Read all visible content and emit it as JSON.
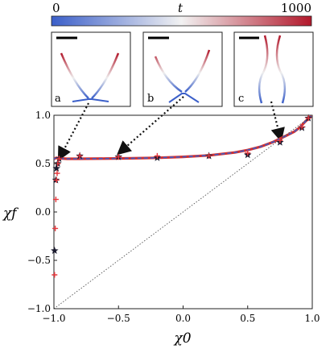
{
  "colorbar": {
    "min_label": "0",
    "mid_label": "t",
    "max_label": "1000",
    "color_low": "#3b5fc9",
    "color_mid": "#f2f2f2",
    "color_high": "#b2182b"
  },
  "insets": [
    {
      "label": "a",
      "x0": -0.97
    },
    {
      "label": "b",
      "x0": -0.5
    },
    {
      "label": "c",
      "x0": 0.77
    }
  ],
  "chart_data": {
    "type": "scatter",
    "xlabel": "χ0",
    "ylabel": "χf",
    "xlim": [
      -1.0,
      1.0
    ],
    "ylim": [
      -1.0,
      1.0
    ],
    "x_ticks": [
      "−1.0",
      "−0.5",
      "0.0",
      "0.5",
      "1.0"
    ],
    "y_ticks": [
      "−1.0",
      "−0.5",
      "0.0",
      "0.5",
      "1.0"
    ],
    "grid": false,
    "series": [
      {
        "name": "",
        "kind": "line",
        "color": "#d32f2f",
        "x": [
          -1.0,
          -0.98,
          -0.96,
          -0.9,
          -0.8,
          -0.6,
          -0.4,
          -0.2,
          0.0,
          0.2,
          0.4,
          0.5,
          0.6,
          0.7,
          0.8,
          0.86,
          0.9,
          0.95,
          1.0
        ],
        "y": [
          0.55,
          0.56,
          0.555,
          0.55,
          0.55,
          0.552,
          0.555,
          0.56,
          0.57,
          0.585,
          0.615,
          0.64,
          0.675,
          0.725,
          0.79,
          0.83,
          0.87,
          0.94,
          1.0
        ]
      },
      {
        "name": "",
        "kind": "line-dashed",
        "color": "#3b5fc9",
        "x": [
          -1.0,
          -0.98,
          -0.96,
          -0.9,
          -0.8,
          -0.6,
          -0.4,
          -0.2,
          0.0,
          0.2,
          0.4,
          0.5,
          0.6,
          0.7,
          0.8,
          0.86,
          0.9,
          0.95,
          1.0
        ],
        "y": [
          0.55,
          0.56,
          0.555,
          0.55,
          0.55,
          0.552,
          0.555,
          0.56,
          0.57,
          0.585,
          0.615,
          0.64,
          0.675,
          0.725,
          0.79,
          0.83,
          0.87,
          0.94,
          1.0
        ]
      },
      {
        "name": "",
        "kind": "stars",
        "color": "#1a1a2e",
        "x": [
          -0.995,
          -0.985,
          -0.98,
          -0.97,
          -0.96,
          -0.8,
          -0.5,
          -0.2,
          0.2,
          0.5,
          0.75,
          0.92,
          0.97
        ],
        "y": [
          -0.4,
          0.33,
          0.45,
          0.5,
          0.55,
          0.58,
          0.57,
          0.56,
          0.58,
          0.59,
          0.72,
          0.87,
          0.97
        ]
      },
      {
        "name": "",
        "kind": "plus",
        "color": "#e8383d",
        "x": [
          -0.995,
          -0.99,
          -0.985,
          -0.98,
          -0.975,
          -0.97,
          -0.96,
          -0.8,
          -0.5,
          -0.2,
          0.2,
          0.5,
          0.75,
          0.92,
          0.97
        ],
        "y": [
          -0.65,
          -0.17,
          0.13,
          0.33,
          0.4,
          0.5,
          0.55,
          0.58,
          0.57,
          0.58,
          0.58,
          0.61,
          0.74,
          0.88,
          0.97
        ]
      },
      {
        "name": "",
        "kind": "diagonal",
        "color": "#555555",
        "x": [
          -1.0,
          1.0
        ],
        "y": [
          -1.0,
          1.0
        ]
      }
    ]
  }
}
